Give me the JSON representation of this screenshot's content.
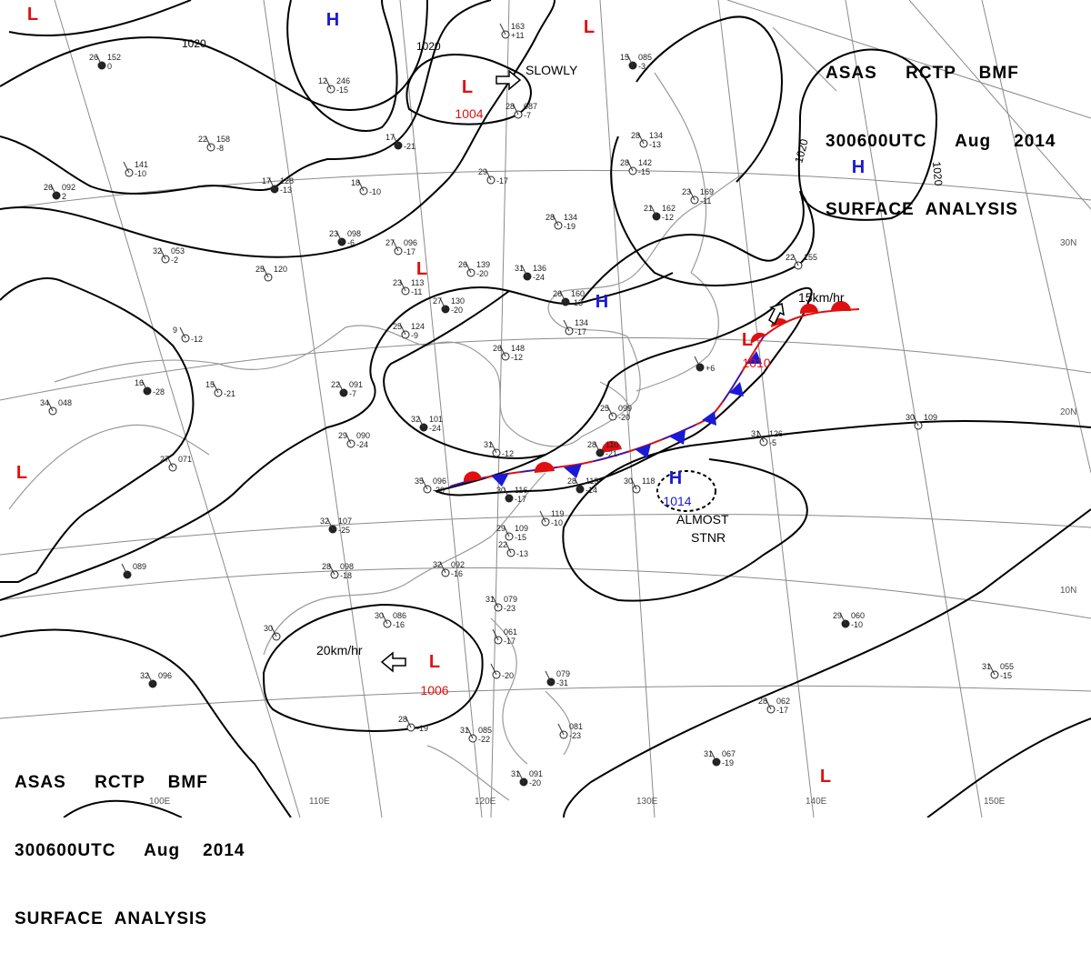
{
  "header": {
    "line1": "ASAS     RCTP    BMF",
    "line2": "300600UTC     Aug    2014",
    "line3": "SURFACE  ANALYSIS"
  },
  "colors": {
    "high": "#1a1ad6",
    "low": "#e01010",
    "warm_front": "#e01010",
    "cold_front": "#1a1ad6",
    "isobar": "#000000",
    "grid": "#8a8a8a",
    "coast": "#9a9a9a"
  },
  "longitude_labels": [
    "100E",
    "110E",
    "120E",
    "130E",
    "140E",
    "150E"
  ],
  "latitude_labels": [
    "30N",
    "20N",
    "10N"
  ],
  "isobar_labels": [
    "1020",
    "1020",
    "1020",
    "1020"
  ],
  "pressure_centers": [
    {
      "type": "H",
      "value": ""
    },
    {
      "type": "H",
      "value": ""
    },
    {
      "type": "H",
      "value": ""
    },
    {
      "type": "H",
      "value": "1014"
    },
    {
      "type": "L",
      "value": "1004"
    },
    {
      "type": "L",
      "value": "1010"
    },
    {
      "type": "L",
      "value": "1006"
    },
    {
      "type": "L",
      "value": ""
    },
    {
      "type": "L",
      "value": ""
    },
    {
      "type": "L",
      "value": ""
    },
    {
      "type": "L",
      "value": ""
    },
    {
      "type": "L",
      "value": ""
    }
  ],
  "annotations": {
    "slowly": "SLOWLY",
    "speed_ne": "15km/hr",
    "speed_sw": "20km/hr",
    "almost": "ALMOST",
    "stnr": "STNR"
  },
  "stations": [
    {
      "t": "26",
      "p": "152",
      "d": "0"
    },
    {
      "t": "22",
      "p": "158",
      "d": "-8"
    },
    {
      "t": "",
      "p": "141",
      "d": "-10"
    },
    {
      "t": "26",
      "p": "092",
      "d": "2"
    },
    {
      "t": "32",
      "p": "053",
      "d": "-2"
    },
    {
      "t": "25",
      "p": "120",
      "d": ""
    },
    {
      "t": "17",
      "p": "128",
      "d": "-13"
    },
    {
      "t": "18",
      "p": "",
      "d": "-10"
    },
    {
      "t": "12",
      "p": "246",
      "d": "-15"
    },
    {
      "t": "23",
      "p": "098",
      "d": "-6"
    },
    {
      "t": "27",
      "p": "096",
      "d": "-17"
    },
    {
      "t": "23",
      "p": "113",
      "d": "-11"
    },
    {
      "t": "27",
      "p": "130",
      "d": "-20"
    },
    {
      "t": "25",
      "p": "124",
      "d": "-9"
    },
    {
      "t": "9",
      "p": "",
      "d": "-12"
    },
    {
      "t": "16",
      "p": "",
      "d": "-28"
    },
    {
      "t": "15",
      "p": "",
      "d": "-21"
    },
    {
      "t": "34",
      "p": "048",
      "d": ""
    },
    {
      "t": "22",
      "p": "091",
      "d": "-7"
    },
    {
      "t": "27",
      "p": "071",
      "d": ""
    },
    {
      "t": "29",
      "p": "090",
      "d": "-24"
    },
    {
      "t": "32",
      "p": "101",
      "d": "-24"
    },
    {
      "t": "31",
      "p": "",
      "d": "-12"
    },
    {
      "t": "35",
      "p": "096",
      "d": "-30"
    },
    {
      "t": "30",
      "p": "116",
      "d": "-17"
    },
    {
      "t": "29",
      "p": "109",
      "d": "-15"
    },
    {
      "t": "22",
      "p": "",
      "d": "-13"
    },
    {
      "t": "32",
      "p": "107",
      "d": "-25"
    },
    {
      "t": "28",
      "p": "098",
      "d": "-18"
    },
    {
      "t": "32",
      "p": "092",
      "d": "-16"
    },
    {
      "t": "",
      "p": "089",
      "d": ""
    },
    {
      "t": "30",
      "p": "086",
      "d": "-16"
    },
    {
      "t": "30",
      "p": "",
      "d": ""
    },
    {
      "t": "32",
      "p": "096",
      "d": ""
    },
    {
      "t": "28",
      "p": "",
      "d": "-19"
    },
    {
      "t": "31",
      "p": "085",
      "d": "-22"
    },
    {
      "t": "31",
      "p": "091",
      "d": "-20"
    },
    {
      "t": "31",
      "p": "079",
      "d": "-23"
    },
    {
      "t": "",
      "p": "061",
      "d": "-17"
    },
    {
      "t": "",
      "p": "079",
      "d": "-31"
    },
    {
      "t": "",
      "p": "081",
      "d": "-23"
    },
    {
      "t": "",
      "p": "",
      "d": "-20"
    },
    {
      "t": "28",
      "p": "119",
      "d": "-14"
    },
    {
      "t": "30",
      "p": "118",
      "d": ""
    },
    {
      "t": "",
      "p": "119",
      "d": "-10"
    },
    {
      "t": "28",
      "p": "110",
      "d": "-21"
    },
    {
      "t": "25",
      "p": "099",
      "d": "-20"
    },
    {
      "t": "26",
      "p": "148",
      "d": "-12"
    },
    {
      "t": "26",
      "p": "160",
      "d": "-13"
    },
    {
      "t": "",
      "p": "134",
      "d": "-17"
    },
    {
      "t": "26",
      "p": "139",
      "d": "-20"
    },
    {
      "t": "31",
      "p": "136",
      "d": "-24"
    },
    {
      "t": "28",
      "p": "134",
      "d": "-19"
    },
    {
      "t": "29",
      "p": "",
      "d": "-17"
    },
    {
      "t": "17",
      "p": "",
      "d": "-21"
    },
    {
      "t": "",
      "p": "163",
      "d": "+11"
    },
    {
      "t": "28",
      "p": "087",
      "d": "-7"
    },
    {
      "t": "15",
      "p": "085",
      "d": "-3"
    },
    {
      "t": "28",
      "p": "134",
      "d": "-13"
    },
    {
      "t": "28",
      "p": "142",
      "d": "-15"
    },
    {
      "t": "21",
      "p": "162",
      "d": "-12"
    },
    {
      "t": "23",
      "p": "169",
      "d": "-11"
    },
    {
      "t": "22",
      "p": "155",
      "d": ""
    },
    {
      "t": "",
      "p": "",
      "d": "+6"
    },
    {
      "t": "31",
      "p": "126",
      "d": "-5"
    },
    {
      "t": "30",
      "p": "109",
      "d": ""
    },
    {
      "t": "29",
      "p": "060",
      "d": "-10"
    },
    {
      "t": "31",
      "p": "055",
      "d": "-15"
    },
    {
      "t": "28",
      "p": "062",
      "d": "-17"
    },
    {
      "t": "31",
      "p": "067",
      "d": "-19"
    }
  ]
}
